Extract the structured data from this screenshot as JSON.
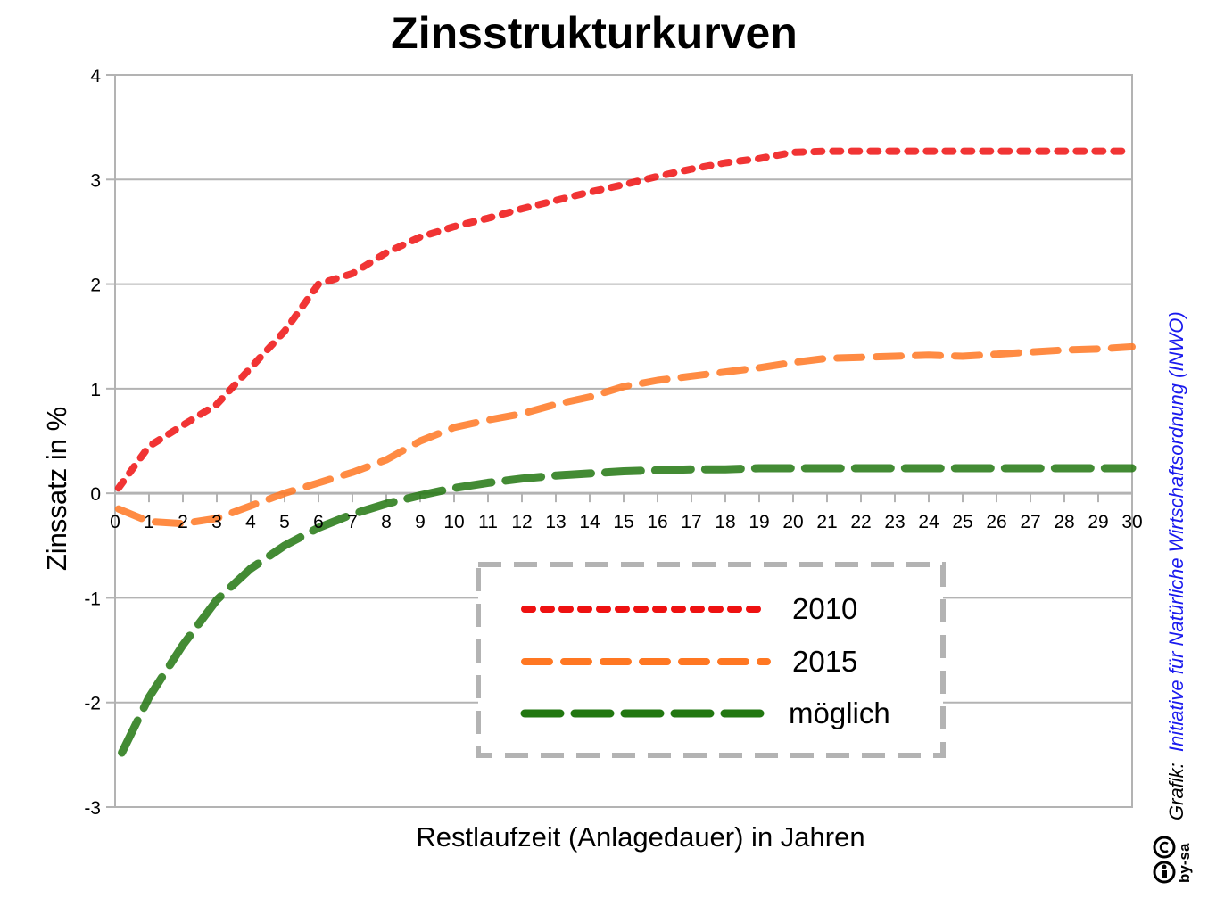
{
  "chart_data": {
    "type": "line",
    "title": "Zinsstrukturkurven",
    "xlabel": "Restlaufzeit (Anlagedauer) in Jahren",
    "ylabel": "Zinssatz in %",
    "xlim": [
      0,
      30
    ],
    "ylim": [
      -3,
      4
    ],
    "xticks": [
      "0",
      "1",
      "2",
      "3",
      "4",
      "5",
      "6",
      "7",
      "8",
      "9",
      "10",
      "11",
      "12",
      "13",
      "14",
      "15",
      "16",
      "17",
      "18",
      "19",
      "20",
      "21",
      "22",
      "23",
      "24",
      "25",
      "26",
      "27",
      "28",
      "29",
      "30"
    ],
    "yticks": [
      "4",
      "3",
      "2",
      "1",
      "0",
      "-1",
      "-2",
      "-3"
    ],
    "grid": true,
    "legend_position": "center-bottom",
    "series": [
      {
        "name": "2010",
        "color": "#ee1111",
        "style": "dotted",
        "x": [
          0.1,
          1,
          2,
          3,
          4,
          5,
          6,
          7,
          8,
          9,
          10,
          11,
          12,
          13,
          14,
          15,
          16,
          17,
          18,
          19,
          20,
          21,
          22,
          23,
          24,
          25,
          26,
          27,
          28,
          29,
          30
        ],
        "y": [
          0.05,
          0.45,
          0.65,
          0.85,
          1.2,
          1.55,
          2.0,
          2.1,
          2.3,
          2.45,
          2.55,
          2.63,
          2.72,
          2.8,
          2.88,
          2.95,
          3.03,
          3.1,
          3.16,
          3.2,
          3.26,
          3.27,
          3.27,
          3.27,
          3.27,
          3.27,
          3.27,
          3.27,
          3.27,
          3.27,
          3.27
        ]
      },
      {
        "name": "2015",
        "color": "#ff7722",
        "style": "dashed",
        "x": [
          0.1,
          1,
          2,
          3,
          4,
          5,
          6,
          7,
          8,
          9,
          10,
          11,
          12,
          13,
          14,
          15,
          16,
          17,
          18,
          19,
          20,
          21,
          22,
          23,
          24,
          25,
          26,
          27,
          28,
          29,
          30
        ],
        "y": [
          -0.15,
          -0.27,
          -0.29,
          -0.24,
          -0.12,
          0.0,
          0.1,
          0.2,
          0.32,
          0.5,
          0.63,
          0.7,
          0.76,
          0.85,
          0.92,
          1.02,
          1.08,
          1.12,
          1.16,
          1.2,
          1.25,
          1.29,
          1.3,
          1.31,
          1.32,
          1.31,
          1.33,
          1.35,
          1.37,
          1.38,
          1.4
        ]
      },
      {
        "name": "möglich",
        "color": "#227711",
        "style": "long-dashed",
        "x": [
          0.2,
          1,
          2,
          3,
          4,
          5,
          6,
          7,
          8,
          9,
          10,
          11,
          12,
          13,
          14,
          15,
          16,
          17,
          18,
          19,
          20,
          21,
          22,
          23,
          24,
          25,
          26,
          27,
          28,
          29,
          30
        ],
        "y": [
          -2.48,
          -1.95,
          -1.45,
          -1.02,
          -0.72,
          -0.5,
          -0.33,
          -0.2,
          -0.1,
          -0.02,
          0.05,
          0.1,
          0.14,
          0.17,
          0.19,
          0.21,
          0.22,
          0.23,
          0.23,
          0.24,
          0.24,
          0.24,
          0.24,
          0.24,
          0.24,
          0.24,
          0.24,
          0.24,
          0.24,
          0.24,
          0.24
        ]
      }
    ]
  },
  "credit": {
    "prefix": "Grafik:",
    "author": "Initiative für Natürliche Wirtschaftsordnung (INWO)"
  },
  "license": {
    "text": "by-sa",
    "icon": "creative-commons-by-sa-icon"
  },
  "colors": {
    "grid": "#b3b3b3",
    "legend_border": "#b3b3b3",
    "credit_link": "#1a1aee"
  }
}
